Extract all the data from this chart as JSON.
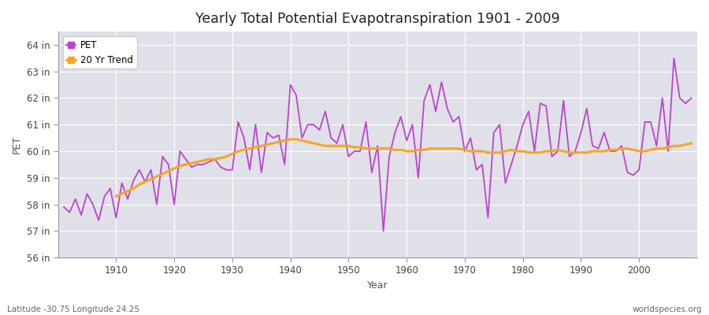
{
  "title": "Yearly Total Potential Evapotranspiration 1901 - 2009",
  "xlabel": "Year",
  "ylabel": "PET",
  "bottom_left": "Latitude -30.75 Longitude 24.25",
  "bottom_right": "worldspecies.org",
  "pet_color": "#bb44cc",
  "trend_color": "#f5a623",
  "fig_bg_color": "#ffffff",
  "plot_bg_color": "#e0e0e8",
  "ylim": [
    56,
    64.5
  ],
  "yticks": [
    56,
    57,
    58,
    59,
    60,
    61,
    62,
    63,
    64
  ],
  "xlim": [
    1900,
    2010
  ],
  "years": [
    1901,
    1902,
    1903,
    1904,
    1905,
    1906,
    1907,
    1908,
    1909,
    1910,
    1911,
    1912,
    1913,
    1914,
    1915,
    1916,
    1917,
    1918,
    1919,
    1920,
    1921,
    1922,
    1923,
    1924,
    1925,
    1926,
    1927,
    1928,
    1929,
    1930,
    1931,
    1932,
    1933,
    1934,
    1935,
    1936,
    1937,
    1938,
    1939,
    1940,
    1941,
    1942,
    1943,
    1944,
    1945,
    1946,
    1947,
    1948,
    1949,
    1950,
    1951,
    1952,
    1953,
    1954,
    1955,
    1956,
    1957,
    1958,
    1959,
    1960,
    1961,
    1962,
    1963,
    1964,
    1965,
    1966,
    1967,
    1968,
    1969,
    1970,
    1971,
    1972,
    1973,
    1974,
    1975,
    1976,
    1977,
    1978,
    1979,
    1980,
    1981,
    1982,
    1983,
    1984,
    1985,
    1986,
    1987,
    1988,
    1989,
    1990,
    1991,
    1992,
    1993,
    1994,
    1995,
    1996,
    1997,
    1998,
    1999,
    2000,
    2001,
    2002,
    2003,
    2004,
    2005,
    2006,
    2007,
    2008,
    2009
  ],
  "pet_values": [
    57.9,
    57.7,
    58.2,
    57.6,
    58.4,
    58.0,
    57.4,
    58.3,
    58.6,
    57.5,
    58.8,
    58.2,
    58.9,
    59.3,
    58.85,
    59.3,
    58.0,
    59.8,
    59.5,
    58.0,
    60.0,
    59.7,
    59.4,
    59.5,
    59.5,
    59.6,
    59.7,
    59.4,
    59.3,
    59.3,
    61.1,
    60.5,
    59.3,
    61.0,
    59.2,
    60.7,
    60.5,
    60.6,
    59.5,
    62.5,
    62.1,
    60.5,
    61.0,
    61.0,
    60.8,
    61.5,
    60.5,
    60.3,
    61.0,
    59.8,
    60.0,
    60.0,
    61.1,
    59.2,
    60.2,
    57.0,
    59.8,
    60.7,
    61.3,
    60.4,
    61.0,
    59.0,
    61.9,
    62.5,
    61.5,
    62.6,
    61.6,
    61.1,
    61.3,
    60.0,
    60.5,
    59.3,
    59.5,
    57.5,
    60.7,
    61.0,
    58.8,
    59.5,
    60.2,
    61.0,
    61.5,
    60.0,
    61.8,
    61.7,
    59.8,
    60.0,
    61.9,
    59.8,
    60.0,
    60.7,
    61.6,
    60.2,
    60.1,
    60.7,
    60.0,
    60.0,
    60.2,
    59.2,
    59.1,
    59.3,
    61.1,
    61.1,
    60.2,
    62.0,
    60.0,
    63.5,
    62.0,
    61.8,
    62.0
  ],
  "trend_years": [
    1910,
    1911,
    1912,
    1913,
    1914,
    1915,
    1916,
    1917,
    1918,
    1919,
    1920,
    1921,
    1922,
    1923,
    1924,
    1925,
    1926,
    1927,
    1928,
    1929,
    1930,
    1931,
    1932,
    1933,
    1934,
    1935,
    1936,
    1937,
    1938,
    1939,
    1940,
    1941,
    1942,
    1943,
    1944,
    1945,
    1946,
    1947,
    1948,
    1949,
    1950,
    1951,
    1952,
    1953,
    1954,
    1955,
    1956,
    1957,
    1958,
    1959,
    1960,
    1961,
    1962,
    1963,
    1964,
    1965,
    1966,
    1967,
    1968,
    1969,
    1970,
    1971,
    1972,
    1973,
    1974,
    1975,
    1976,
    1977,
    1978,
    1979,
    1980,
    1981,
    1982,
    1983,
    1984,
    1985,
    1986,
    1987,
    1988,
    1989,
    1990,
    1991,
    1992,
    1993,
    1994,
    1995,
    1996,
    1997,
    1998,
    1999,
    2000,
    2001,
    2002,
    2003,
    2004,
    2005,
    2006,
    2007,
    2008,
    2009
  ],
  "trend_values": [
    58.3,
    58.4,
    58.5,
    58.6,
    58.75,
    58.85,
    58.95,
    59.05,
    59.15,
    59.25,
    59.35,
    59.45,
    59.5,
    59.55,
    59.6,
    59.65,
    59.7,
    59.7,
    59.75,
    59.8,
    59.9,
    60.0,
    60.05,
    60.1,
    60.15,
    60.2,
    60.25,
    60.3,
    60.35,
    60.4,
    60.45,
    60.45,
    60.4,
    60.35,
    60.3,
    60.25,
    60.2,
    60.2,
    60.2,
    60.2,
    60.2,
    60.15,
    60.15,
    60.1,
    60.1,
    60.1,
    60.1,
    60.1,
    60.05,
    60.05,
    60.0,
    60.0,
    60.05,
    60.05,
    60.1,
    60.1,
    60.1,
    60.1,
    60.1,
    60.1,
    60.05,
    60.0,
    60.0,
    60.0,
    59.95,
    59.95,
    59.95,
    60.0,
    60.05,
    60.0,
    60.0,
    59.95,
    59.95,
    59.95,
    60.0,
    60.0,
    60.05,
    60.0,
    59.95,
    59.95,
    59.95,
    59.95,
    60.0,
    60.0,
    60.0,
    60.05,
    60.05,
    60.1,
    60.1,
    60.05,
    60.0,
    60.0,
    60.05,
    60.1,
    60.1,
    60.15,
    60.2,
    60.2,
    60.25,
    60.3
  ]
}
